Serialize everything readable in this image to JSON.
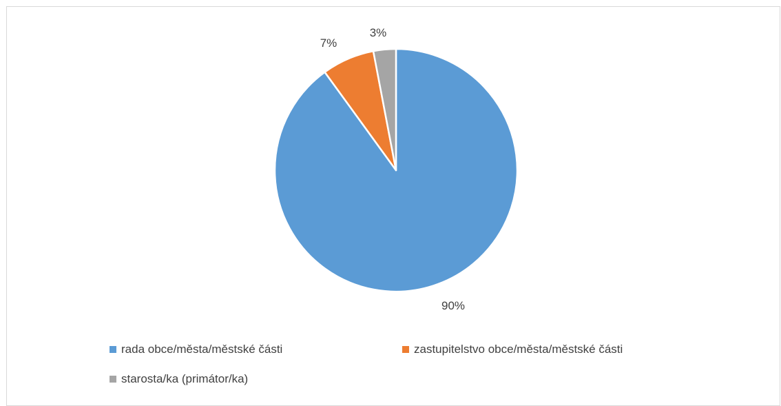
{
  "chart_data": {
    "type": "pie",
    "title": "",
    "start_angle_deg": 0,
    "direction": "clockwise",
    "slices": [
      {
        "label": "rada obce/města/městské části",
        "value": 90,
        "display": "90%",
        "color": "#5b9bd5"
      },
      {
        "label": "zastupitelstvo obce/města/městské části",
        "value": 7,
        "display": "7%",
        "color": "#ed7d31"
      },
      {
        "label": "starosta/ka (primátor/ka)",
        "value": 3,
        "display": "3%",
        "color": "#a5a5a5"
      }
    ],
    "legend_position": "bottom"
  }
}
